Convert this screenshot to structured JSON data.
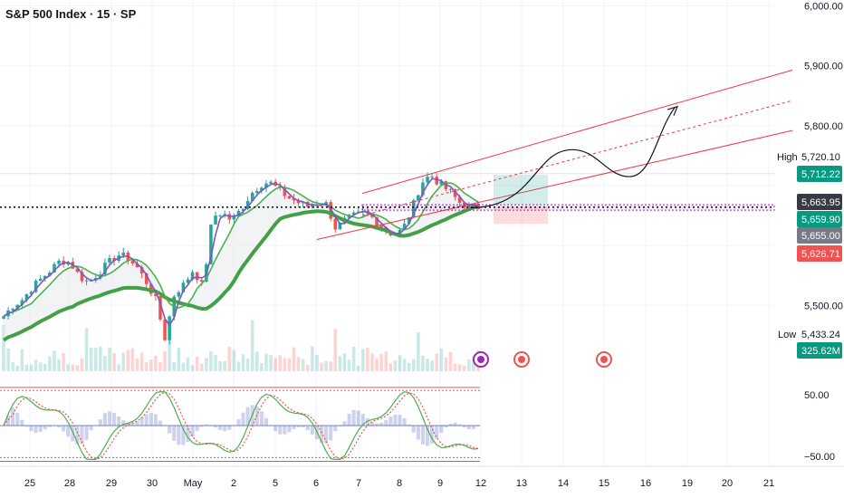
{
  "title": "S&P 500 Index · 15 · SP",
  "colors": {
    "up": "#26a69a",
    "down": "#ef5350",
    "ma_fast": "#7e57c2",
    "ma_mid": "#4caf50",
    "ma_slow": "#43a047",
    "channel": "#f23645",
    "grid": "#f0f3fa",
    "high_badge": "#089981",
    "price_badge": "#131722",
    "low_badge": "#089981"
  },
  "labels": {
    "high": "High",
    "low": "Low"
  },
  "chart_data": {
    "type": "candlestick",
    "price_axis": {
      "ticks": [
        "6,000.00",
        "5,900.00",
        "5,800.00",
        "5,500.00"
      ],
      "tick_values": [
        6000,
        5900,
        5800,
        5500
      ],
      "ylim": [
        5390,
        6010
      ]
    },
    "x_ticks": [
      "25",
      "28",
      "29",
      "30",
      "May",
      "2",
      "5",
      "6",
      "7",
      "8",
      "9",
      "12",
      "13",
      "14",
      "15",
      "16",
      "19",
      "20",
      "21"
    ],
    "price_badges": [
      {
        "label": "5,720.10",
        "value": 5720.1,
        "kind": "high"
      },
      {
        "label": "5,712.22",
        "value": 5712.22,
        "kind": "green"
      },
      {
        "label": "5,663.95",
        "value": 5663.95,
        "kind": "current"
      },
      {
        "label": "5,659.90",
        "value": 5659.9,
        "kind": "green"
      },
      {
        "label": "5,655.00",
        "value": 5655.0,
        "kind": "gray"
      },
      {
        "label": "5,626.71",
        "value": 5626.71,
        "kind": "red"
      },
      {
        "label": "5,433.24",
        "value": 5433.24,
        "kind": "low"
      },
      {
        "label": "325.62M",
        "value": 325.62,
        "kind": "volume"
      }
    ],
    "price_path": [
      5482,
      5500,
      5510,
      5530,
      5545,
      5560,
      5575,
      5572,
      5548,
      5538,
      5555,
      5570,
      5585,
      5580,
      5565,
      5540,
      5510,
      5445,
      5520,
      5535,
      5560,
      5530,
      5648,
      5655,
      5642,
      5660,
      5685,
      5702,
      5706,
      5693,
      5680,
      5672,
      5665,
      5672,
      5669,
      5628,
      5642,
      5650,
      5655,
      5645,
      5630,
      5618,
      5625,
      5660,
      5705,
      5718,
      5702,
      5690,
      5672,
      5665,
      5663.95
    ],
    "oscillator": {
      "ticks": [
        "50.00",
        "−50.00"
      ],
      "tick_values": [
        50,
        -50
      ]
    }
  }
}
